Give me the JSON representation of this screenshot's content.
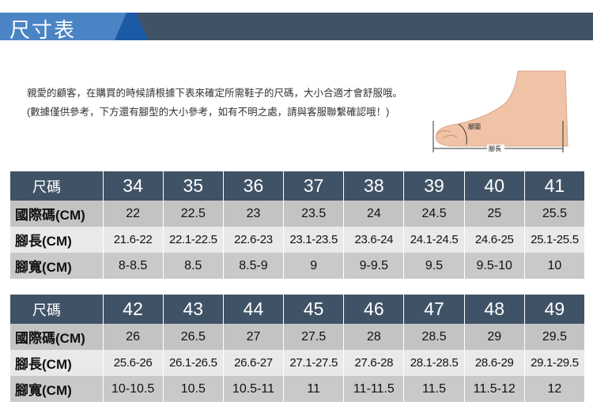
{
  "header": {
    "title": "尺寸表"
  },
  "intro": "親愛的顧客，在購買的時候請根據下表來確定所需鞋子的尺碼，大小合適才會舒服哦。 (數據僅供參考，下方還有腳型的大小參考，如有不明之處，請與客服聯繫確認哦！)",
  "foot_diagram": {
    "girth_label": "腳圍",
    "length_label": "腳長"
  },
  "row_labels": [
    "尺碼",
    "國際碼(CM)",
    "腳長(CM)",
    "腳寬(CM)"
  ],
  "tables": [
    {
      "sizes": [
        "34",
        "35",
        "36",
        "37",
        "38",
        "39",
        "40",
        "41"
      ],
      "intl": [
        "22",
        "22.5",
        "23",
        "23.5",
        "24",
        "24.5",
        "25",
        "25.5"
      ],
      "length": [
        "21.6-22",
        "22.1-22.5",
        "22.6-23",
        "23.1-23.5",
        "23.6-24",
        "24.1-24.5",
        "24.6-25",
        "25.1-25.5"
      ],
      "width": [
        "8-8.5",
        "8.5",
        "8.5-9",
        "9",
        "9-9.5",
        "9.5",
        "9.5-10",
        "10"
      ]
    },
    {
      "sizes": [
        "42",
        "43",
        "44",
        "45",
        "46",
        "47",
        "48",
        "49"
      ],
      "intl": [
        "26",
        "26.5",
        "27",
        "27.5",
        "28",
        "28.5",
        "29",
        "29.5"
      ],
      "length": [
        "25.6-26",
        "26.1-26.5",
        "26.6-27",
        "27.1-27.5",
        "27.6-28",
        "28.1-28.5",
        "28.6-29",
        "29.1-29.5"
      ],
      "width": [
        "10-10.5",
        "10.5",
        "10.5-11",
        "11",
        "11-11.5",
        "11.5",
        "11.5-12",
        "12"
      ]
    }
  ],
  "colors": {
    "header_bg": "#405366",
    "accent_blue": "#4a84c4"
  }
}
